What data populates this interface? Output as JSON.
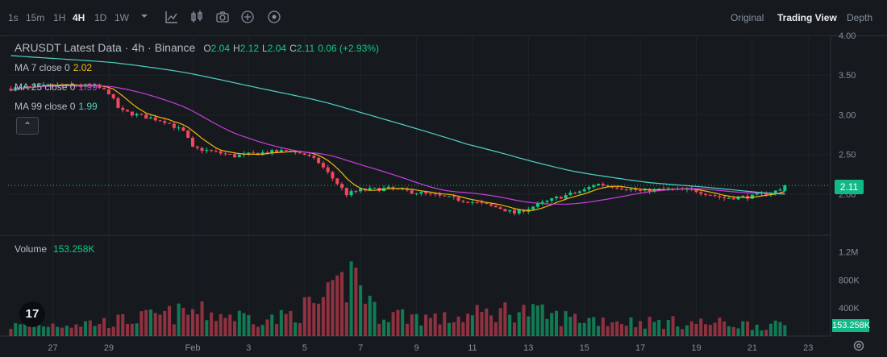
{
  "toolbar": {
    "timeframes": [
      "1s",
      "15m",
      "1H",
      "4H",
      "1D",
      "1W"
    ],
    "active_timeframe": "4H",
    "views": [
      "Original",
      "Trading View",
      "Depth"
    ],
    "active_view": "Trading View",
    "icons": [
      "chevron-down-icon",
      "indicator-icon",
      "chart-type-icon",
      "camera-icon",
      "add-icon",
      "settings-circle-icon"
    ]
  },
  "legend": {
    "symbol": "ARUSDT Latest Data",
    "interval": "4h",
    "exchange": "Binance",
    "o_label": "O",
    "o": "2.04",
    "h_label": "H",
    "h": "2.12",
    "l_label": "L",
    "l": "2.04",
    "c_label": "C",
    "c": "2.11",
    "change": "0.06 (+2.93%)",
    "ma7_label": "MA 7 close 0",
    "ma7": "2.02",
    "ma25_label": "MA 25 close 0",
    "ma25": "1.99",
    "ma99_label": "MA 99 close 0",
    "ma99": "1.99",
    "collapse_icon": "chevron-up-icon"
  },
  "volume_legend": {
    "label": "Volume",
    "value": "153.258K"
  },
  "last_price_tag": "2.11",
  "last_volume_tag": "153.258K",
  "logo_text": "17",
  "colors": {
    "up": "#0ecb81",
    "down": "#f6465d",
    "ma7": "#f0b90b",
    "ma25": "#c93ce0",
    "ma99": "#4fd1c5",
    "bg": "#161a1e"
  },
  "chart_data": {
    "type": "candlestick",
    "price_axis": {
      "ticks": [
        "4.00",
        "3.50",
        "3.00",
        "2.50",
        "2.00"
      ],
      "range": [
        1.5,
        4.0
      ]
    },
    "volume_axis": {
      "ticks": [
        "1.2M",
        "800K",
        "400K"
      ],
      "range": [
        0,
        1400000
      ]
    },
    "x_ticks": [
      "27",
      "29",
      "Feb",
      "3",
      "5",
      "7",
      "9",
      "11",
      "13",
      "15",
      "17",
      "19",
      "21",
      "23"
    ],
    "x_tick_days": [
      -5,
      -3,
      0,
      2,
      4,
      6,
      8,
      10,
      12,
      14,
      16,
      18,
      20,
      22
    ],
    "x_range_days": [
      -6.6,
      22.8
    ],
    "bars_per_day": 6,
    "start_day": -6.5,
    "close_anchors": [
      [
        -6.5,
        3.33
      ],
      [
        -5.0,
        3.37
      ],
      [
        -3.5,
        3.36
      ],
      [
        -3.0,
        3.28
      ],
      [
        -2.6,
        3.05
      ],
      [
        -1.8,
        2.98
      ],
      [
        -1.0,
        2.92
      ],
      [
        -0.3,
        2.78
      ],
      [
        0.0,
        2.58
      ],
      [
        0.5,
        2.55
      ],
      [
        1.5,
        2.48
      ],
      [
        2.5,
        2.52
      ],
      [
        3.5,
        2.55
      ],
      [
        4.0,
        2.5
      ],
      [
        4.5,
        2.4
      ],
      [
        5.0,
        2.2
      ],
      [
        5.5,
        2.0
      ],
      [
        6.0,
        2.05
      ],
      [
        7.0,
        2.07
      ],
      [
        8.0,
        2.02
      ],
      [
        9.0,
        1.96
      ],
      [
        10.0,
        1.9
      ],
      [
        11.0,
        1.82
      ],
      [
        11.5,
        1.76
      ],
      [
        12.0,
        1.82
      ],
      [
        13.0,
        1.95
      ],
      [
        14.0,
        2.05
      ],
      [
        14.4,
        2.13
      ],
      [
        15.0,
        2.1
      ],
      [
        16.0,
        2.04
      ],
      [
        17.0,
        2.06
      ],
      [
        18.0,
        2.04
      ],
      [
        19.0,
        1.95
      ],
      [
        20.0,
        1.97
      ],
      [
        21.0,
        2.05
      ],
      [
        21.3,
        2.11
      ]
    ],
    "volume_anchors": [
      [
        -6.5,
        160000
      ],
      [
        -3.0,
        220000
      ],
      [
        0.0,
        380000
      ],
      [
        3.0,
        260000
      ],
      [
        5.0,
        600000
      ],
      [
        5.8,
        1050000
      ],
      [
        6.5,
        380000
      ],
      [
        9.0,
        260000
      ],
      [
        11.5,
        420000
      ],
      [
        13.0,
        300000
      ],
      [
        16.0,
        220000
      ],
      [
        19.0,
        200000
      ],
      [
        21.3,
        153258
      ]
    ]
  }
}
